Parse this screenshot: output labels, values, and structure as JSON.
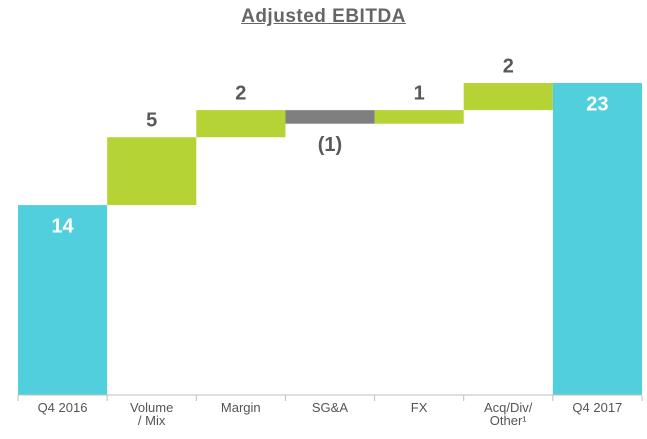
{
  "chart_data": {
    "type": "waterfall",
    "title": "Adjusted EBITDA",
    "categories": [
      "Q4 2016",
      "Volume\n/ Mix",
      "Margin",
      "SG&A",
      "FX",
      "Acq/Div/\nOther¹",
      "Q4 2017"
    ],
    "values": [
      14,
      5,
      2,
      -1,
      1,
      2,
      23
    ],
    "value_labels": [
      "14",
      "5",
      "2",
      "(1)",
      "1",
      "2",
      "23"
    ],
    "colors": {
      "total": "#52cfdd",
      "increase": "#b5d334",
      "decrease": "#7f7f7f"
    }
  }
}
